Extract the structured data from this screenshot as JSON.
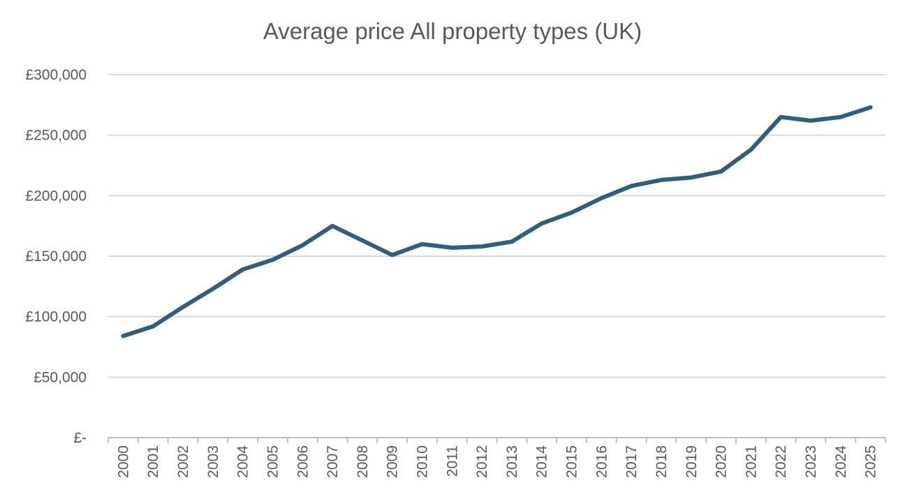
{
  "chart_data": {
    "type": "line",
    "title": "Average price All property types (UK)",
    "xlabel": "",
    "ylabel": "",
    "categories": [
      "2000",
      "2001",
      "2002",
      "2003",
      "2004",
      "2005",
      "2006",
      "2007",
      "2008",
      "2009",
      "2010",
      "2011",
      "2012",
      "2013",
      "2014",
      "2015",
      "2016",
      "2017",
      "2018",
      "2019",
      "2020",
      "2021",
      "2022",
      "2023",
      "2024",
      "2025"
    ],
    "series": [
      {
        "values": [
          84000,
          92000,
          108000,
          123000,
          139000,
          147000,
          159000,
          175000,
          163000,
          151000,
          160000,
          157000,
          158000,
          162000,
          177000,
          186000,
          198000,
          208000,
          213000,
          215000,
          220000,
          238000,
          265000,
          262000,
          265000,
          273000
        ],
        "color": "#2e5f7f"
      }
    ],
    "ylim": [
      0,
      300000
    ],
    "yticks": [
      0,
      50000,
      100000,
      150000,
      200000,
      250000,
      300000
    ],
    "ytick_labels": [
      "£-",
      "£50,000",
      "£100,000",
      "£150,000",
      "£200,000",
      "£250,000",
      "£300,000"
    ],
    "grid": "horizontal",
    "legend": "none"
  }
}
